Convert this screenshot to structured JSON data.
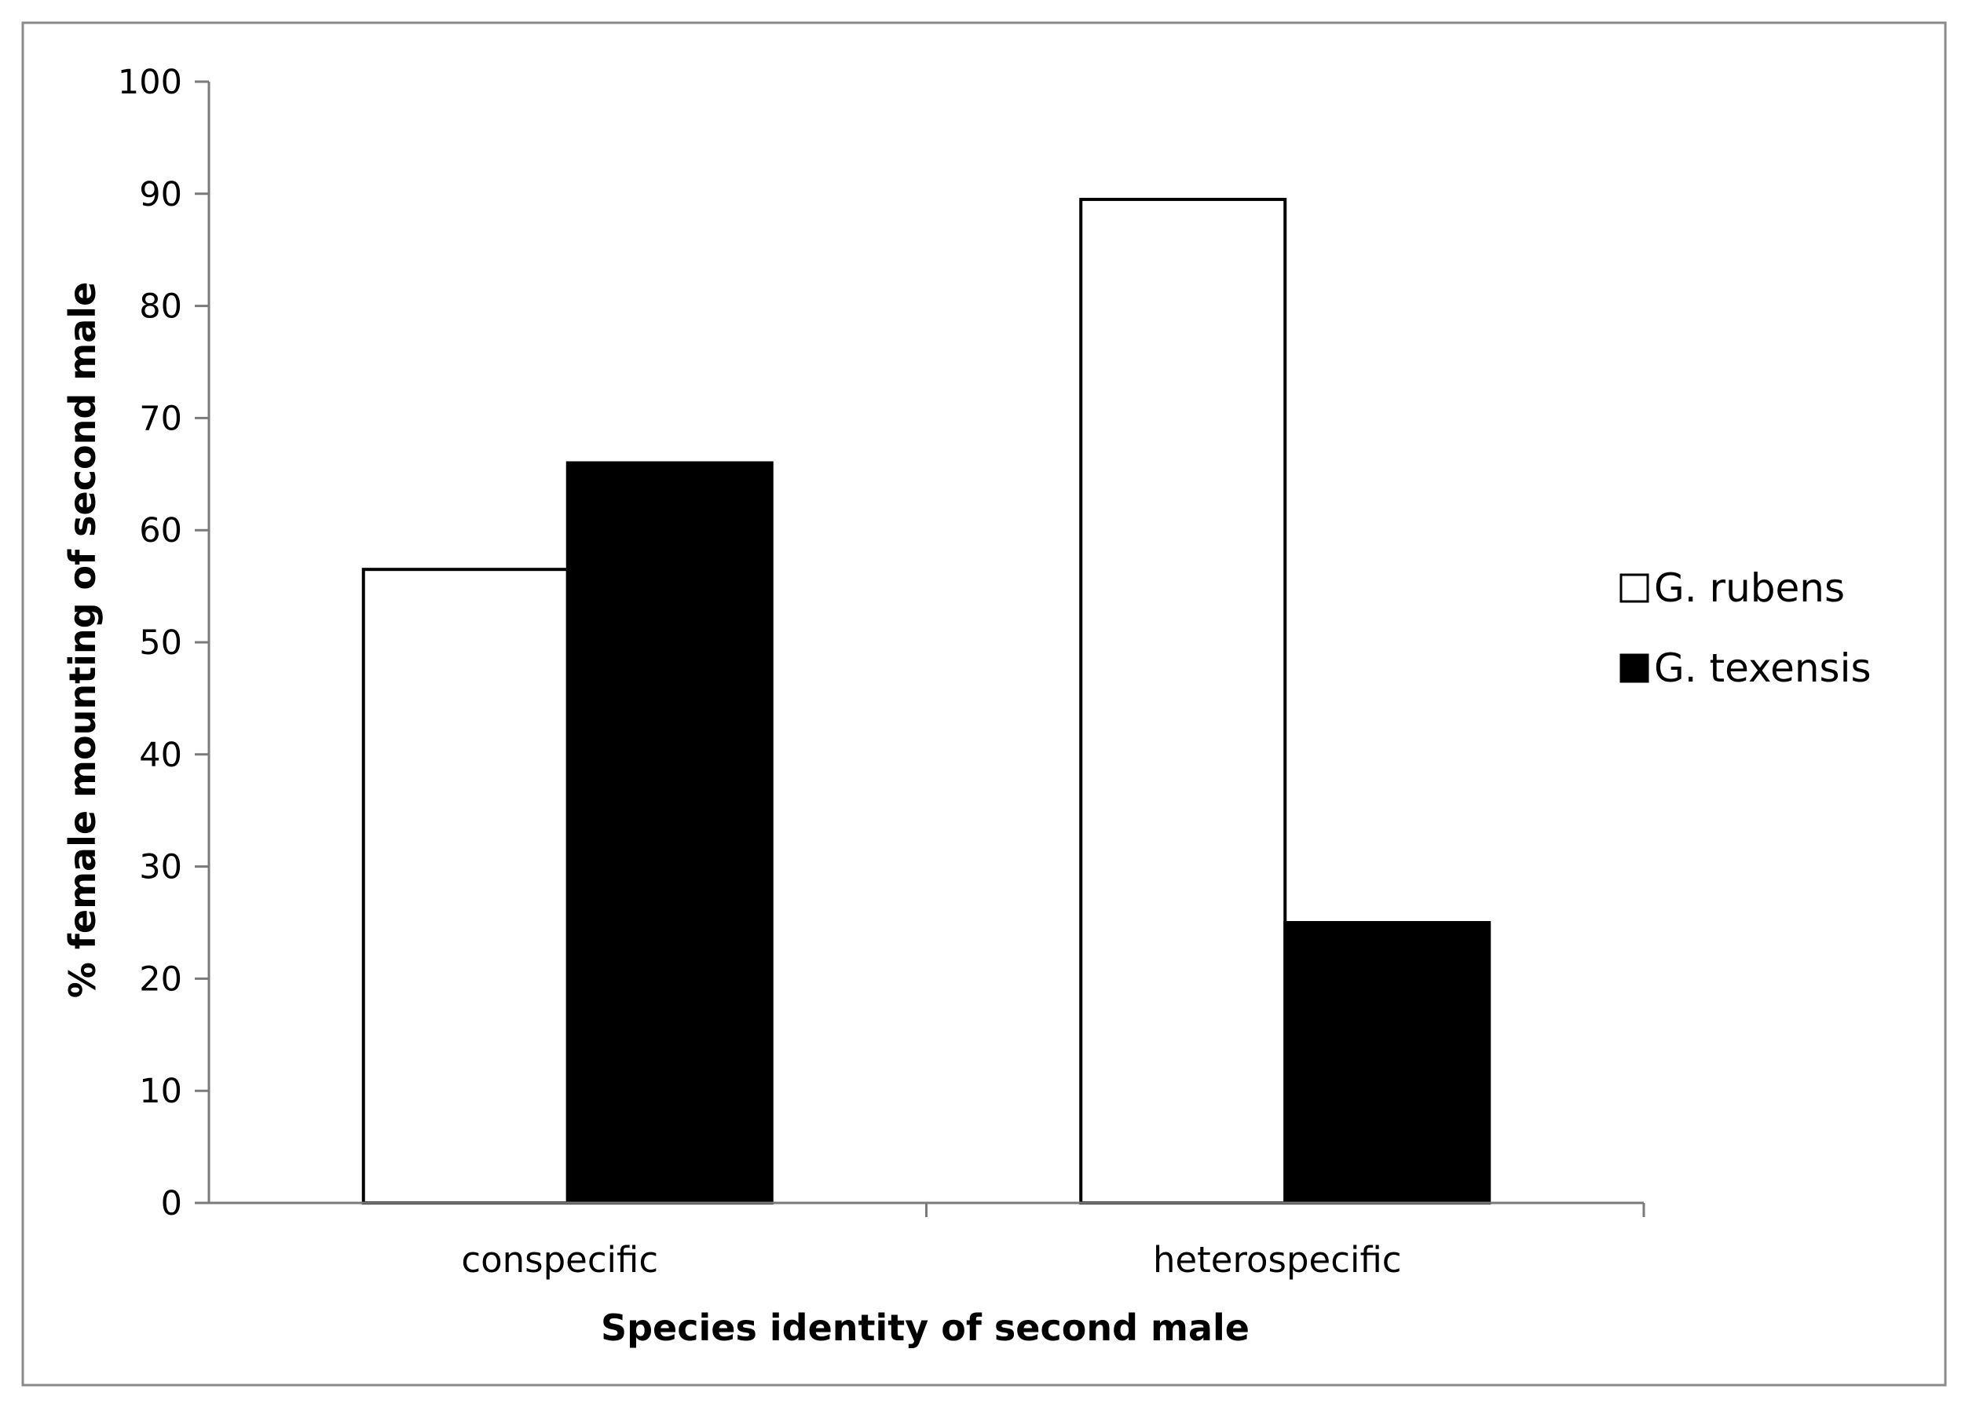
{
  "chart_data": {
    "type": "bar",
    "title": "",
    "xlabel": "Species identity of second male",
    "ylabel": "% female mounting of second male",
    "ylim": [
      0,
      100
    ],
    "yticks": [
      0,
      10,
      20,
      30,
      40,
      50,
      60,
      70,
      80,
      90,
      100
    ],
    "categories": [
      "conspecific",
      "heterospecific"
    ],
    "series": [
      {
        "name": "G. rubens",
        "color": "#ffffff",
        "values": [
          56.5,
          89.5
        ]
      },
      {
        "name": "G. texensis",
        "color": "#000000",
        "values": [
          66,
          25
        ]
      }
    ],
    "legend_position": "right",
    "grid": false
  }
}
